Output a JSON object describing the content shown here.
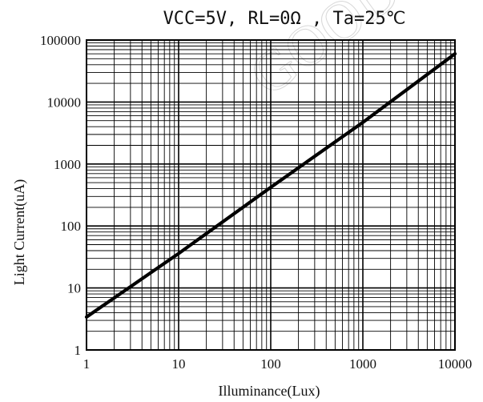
{
  "chart_data": {
    "type": "line",
    "title": "VCC=5V, RL=0Ω , Ta=25℃",
    "xlabel": "Illuminance(Lux)",
    "ylabel": "Light Current(uA)",
    "x_scale": "log",
    "y_scale": "log",
    "xlim": [
      1,
      10000
    ],
    "ylim": [
      1,
      100000
    ],
    "x_ticks": [
      1,
      10,
      100,
      1000,
      10000
    ],
    "x_tick_labels": [
      "1",
      "10",
      "100",
      "1000",
      "10000"
    ],
    "y_ticks": [
      1,
      10,
      100,
      1000,
      10000,
      100000
    ],
    "y_tick_labels": [
      "1",
      "10",
      "100",
      "1000",
      "10000",
      "100000"
    ],
    "grid": true,
    "series": [
      {
        "x": [
          1,
          10,
          100,
          1000,
          10000
        ],
        "y": [
          3.4,
          36,
          420,
          4700,
          60000
        ]
      }
    ],
    "watermark_text": "GOOD",
    "colors": {
      "line": "#000000",
      "grid": "#000000",
      "watermark": "#cfcfcf"
    }
  }
}
